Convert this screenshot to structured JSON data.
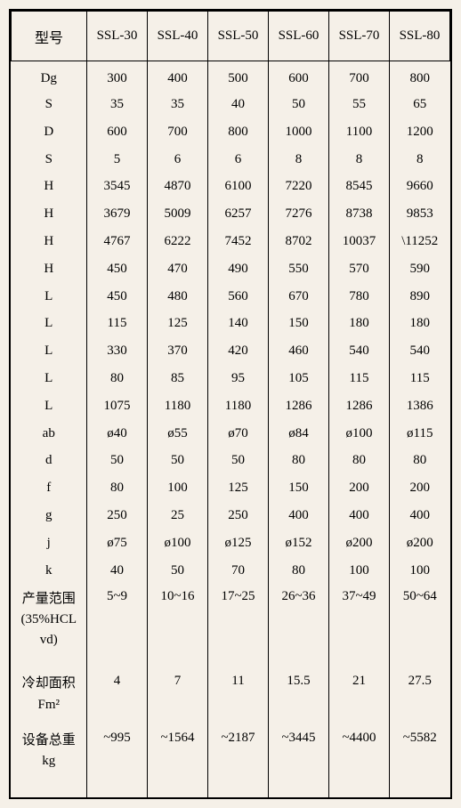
{
  "table": {
    "header": {
      "label_col": "型号",
      "columns": [
        "SSL-30",
        "SSL-40",
        "SSL-50",
        "SSL-60",
        "SSL-70",
        "SSL-80"
      ]
    },
    "rows": [
      {
        "label": "Dg",
        "values": [
          "300",
          "400",
          "500",
          "600",
          "700",
          "800"
        ]
      },
      {
        "label": "S",
        "values": [
          "35",
          "35",
          "40",
          "50",
          "55",
          "65"
        ]
      },
      {
        "label": "D",
        "values": [
          "600",
          "700",
          "800",
          "1000",
          "1100",
          "1200"
        ]
      },
      {
        "label": "S",
        "values": [
          "5",
          "6",
          "6",
          "8",
          "8",
          "8"
        ]
      },
      {
        "label": "H",
        "values": [
          "3545",
          "4870",
          "6100",
          "7220",
          "8545",
          "9660"
        ]
      },
      {
        "label": "H",
        "values": [
          "3679",
          "5009",
          "6257",
          "7276",
          "8738",
          "9853"
        ]
      },
      {
        "label": "H",
        "values": [
          "4767",
          "6222",
          "7452",
          "8702",
          "10037",
          "\\11252"
        ]
      },
      {
        "label": "H",
        "values": [
          "450",
          "470",
          "490",
          "550",
          "570",
          "590"
        ]
      },
      {
        "label": "L",
        "values": [
          "450",
          "480",
          "560",
          "670",
          "780",
          "890"
        ]
      },
      {
        "label": "L",
        "values": [
          "115",
          "125",
          "140",
          "150",
          "180",
          "180"
        ]
      },
      {
        "label": "L",
        "values": [
          "330",
          "370",
          "420",
          "460",
          "540",
          "540"
        ]
      },
      {
        "label": "L",
        "values": [
          "80",
          "85",
          "95",
          "105",
          "115",
          "115"
        ]
      },
      {
        "label": "L",
        "values": [
          "1075",
          "1180",
          "1180",
          "1286",
          "1286",
          "1386"
        ]
      },
      {
        "label": "ab",
        "values": [
          "ø40",
          "ø55",
          "ø70",
          "ø84",
          "ø100",
          "ø115"
        ]
      },
      {
        "label": "d",
        "values": [
          "50",
          "50",
          "50",
          "80",
          "80",
          "80"
        ]
      },
      {
        "label": "f",
        "values": [
          "80",
          "100",
          "125",
          "150",
          "200",
          "200"
        ]
      },
      {
        "label": "g",
        "values": [
          "250",
          "25",
          "250",
          "400",
          "400",
          "400"
        ]
      },
      {
        "label": "j",
        "values": [
          "ø75",
          "ø100",
          "ø125",
          "ø152",
          "ø200",
          "ø200"
        ]
      },
      {
        "label": "k",
        "values": [
          "40",
          "50",
          "70",
          "80",
          "100",
          "100"
        ]
      },
      {
        "label_lines": [
          "产量范围",
          "(35%HCL",
          "vd)"
        ],
        "values": [
          "5~9",
          "10~16",
          "17~25",
          "26~36",
          "37~49",
          "50~64"
        ],
        "tall": true
      },
      {
        "label_lines": [
          "冷却面积",
          "Fm²"
        ],
        "values": [
          "4",
          "7",
          "11",
          "15.5",
          "21",
          "27.5"
        ],
        "med": true
      },
      {
        "label_lines": [
          "设备总重",
          "kg"
        ],
        "values": [
          "~995",
          "~1564",
          "~2187",
          "~3445",
          "~4400",
          "~5582"
        ],
        "last": true
      }
    ],
    "styling": {
      "background_color": "#f5f0e8",
      "border_color": "#000000",
      "text_color": "#000000",
      "font_family": "SimSun, serif",
      "font_size_header": 15,
      "font_size_cell": 15,
      "num_data_columns": 6
    }
  }
}
